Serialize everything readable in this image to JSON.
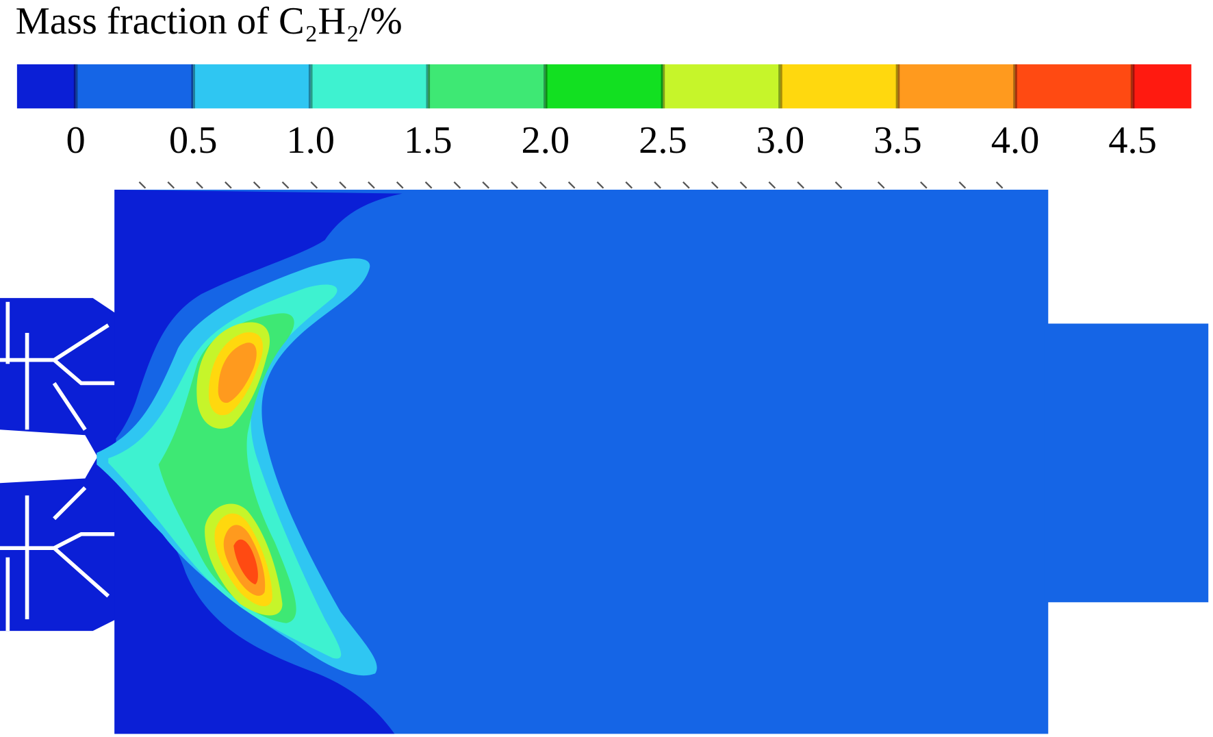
{
  "chart_data": {
    "type": "contour",
    "title": "Mass fraction of C₂H₂/%",
    "clim": [
      -0.25,
      4.75
    ],
    "cticks": [
      0,
      0.5,
      {
        "value": 1,
        "label": "1.0"
      },
      1.5,
      {
        "value": 2,
        "label": "2.0"
      },
      2.5,
      {
        "value": 3,
        "label": "3.0"
      },
      3.5,
      {
        "value": 4,
        "label": "4.0"
      },
      4.5
    ],
    "colors": [
      "#0b1fd6",
      "#1565e6",
      "#2fc6f2",
      "#3ef2d0",
      "#3ee874",
      "#12e021",
      "#c6f52a",
      "#ffd80e",
      "#ff9a1e",
      "#ff4a12",
      "#ff1a10"
    ]
  }
}
